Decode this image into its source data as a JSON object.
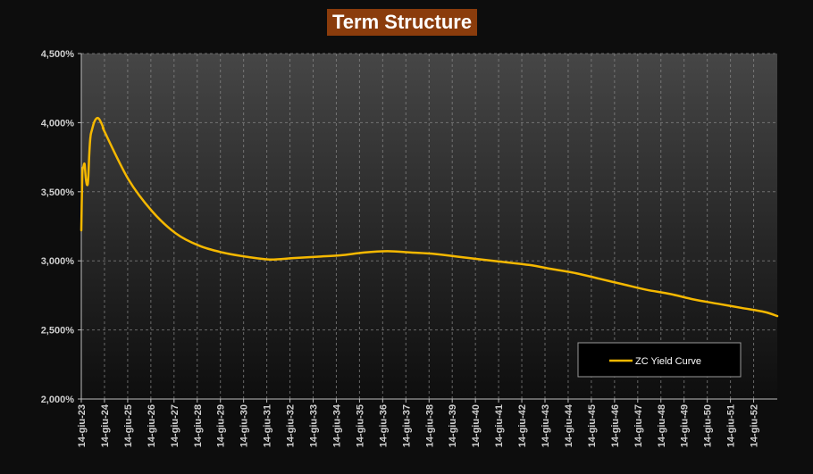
{
  "chart_data": {
    "type": "line",
    "title": "Term Structure",
    "xlabel": "",
    "ylabel": "",
    "ylim": [
      0.02,
      0.045
    ],
    "y_ticks": [
      0.02,
      0.025,
      0.03,
      0.035,
      0.04,
      0.045
    ],
    "y_tick_labels": [
      "2,000%",
      "2,500%",
      "3,000%",
      "3,500%",
      "4,000%",
      "4,500%"
    ],
    "x_ticks": [
      "14-giu-23",
      "14-giu-24",
      "14-giu-25",
      "14-giu-26",
      "14-giu-27",
      "14-giu-28",
      "14-giu-29",
      "14-giu-30",
      "14-giu-31",
      "14-giu-32",
      "14-giu-33",
      "14-giu-34",
      "14-giu-35",
      "14-giu-36",
      "14-giu-37",
      "14-giu-38",
      "14-giu-39",
      "14-giu-40",
      "14-giu-41",
      "14-giu-42",
      "14-giu-43",
      "14-giu-44",
      "14-giu-45",
      "14-giu-46",
      "14-giu-47",
      "14-giu-48",
      "14-giu-49",
      "14-giu-50",
      "14-giu-51",
      "14-giu-52"
    ],
    "x_end": 2053.0,
    "grid": true,
    "legend_position": "bottom-right",
    "series": [
      {
        "name": "ZC Yield Curve",
        "color": "#f5b800",
        "x": [
          2023.46,
          2023.5,
          2023.55,
          2023.6,
          2023.65,
          2023.7,
          2023.75,
          2023.8,
          2023.85,
          2023.9,
          2024.0,
          2024.1,
          2024.2,
          2024.3,
          2024.4,
          2024.46,
          2025.46,
          2026.46,
          2027.46,
          2028.46,
          2029.46,
          2030.46,
          2031.46,
          2032.46,
          2033.46,
          2034.46,
          2035.46,
          2036.46,
          2037.46,
          2038.46,
          2039.46,
          2040.46,
          2041.46,
          2042.46,
          2043.46,
          2044.46,
          2045.46,
          2046.46,
          2047.46,
          2048.46,
          2049.46,
          2050.46,
          2051.46,
          2052.46,
          2053.0
        ],
        "y": [
          0.0322,
          0.0362,
          0.0368,
          0.037,
          0.036,
          0.0355,
          0.0358,
          0.0378,
          0.039,
          0.0394,
          0.04,
          0.0403,
          0.0403,
          0.04,
          0.0396,
          0.0393,
          0.0359,
          0.0336,
          0.032,
          0.0311,
          0.0306,
          0.0303,
          0.0301,
          0.0302,
          0.0303,
          0.0304,
          0.0306,
          0.0307,
          0.0306,
          0.0305,
          0.0303,
          0.0301,
          0.0299,
          0.0297,
          0.0294,
          0.0291,
          0.0287,
          0.0283,
          0.0279,
          0.0276,
          0.0272,
          0.0269,
          0.0266,
          0.0263,
          0.026
        ]
      }
    ]
  }
}
